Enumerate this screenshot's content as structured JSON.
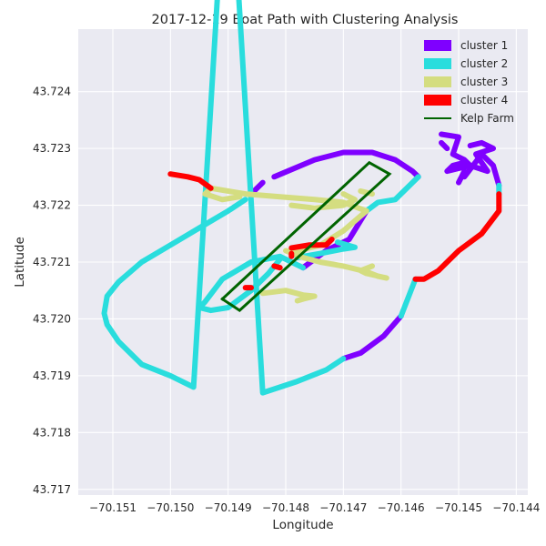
{
  "chart_data": {
    "type": "line",
    "title": "2017-12-19 Boat Path with Clustering Analysis",
    "xlabel": "Longitude",
    "ylabel": "Latitude",
    "xlim": [
      -70.1516,
      -70.1438
    ],
    "ylim": [
      43.7169,
      43.7251
    ],
    "xticks": [
      -70.151,
      -70.15,
      -70.149,
      -70.148,
      -70.147,
      -70.146,
      -70.145,
      -70.144
    ],
    "xtick_labels": [
      "−70.151",
      "−70.150",
      "−70.149",
      "−70.148",
      "−70.147",
      "−70.146",
      "−70.145",
      "−70.144"
    ],
    "yticks": [
      43.717,
      43.718,
      43.719,
      43.72,
      43.721,
      43.722,
      43.723,
      43.724
    ],
    "ytick_labels": [
      "43.717",
      "43.718",
      "43.719",
      "43.720",
      "43.721",
      "43.722",
      "43.723",
      "43.724"
    ],
    "grid": true,
    "legend_position": "top-right",
    "background_color": "#EAEAF2",
    "series": [
      {
        "name": "cluster 1",
        "color": "#7F00FF",
        "segments": [
          [
            [
              -70.1486,
              43.7222
            ],
            [
              -70.1484,
              43.7224
            ]
          ],
          [
            [
              -70.1482,
              43.7225
            ],
            [
              -70.1475,
              43.7228
            ],
            [
              -70.147,
              43.72293
            ],
            [
              -70.1465,
              43.72293
            ],
            [
              -70.1461,
              43.7228
            ],
            [
              -70.1458,
              43.7226
            ],
            [
              -70.1457,
              43.7225
            ]
          ],
          [
            [
              -70.1466,
              43.7219
            ],
            [
              -70.1469,
              43.7214
            ],
            [
              -70.1473,
              43.7212
            ],
            [
              -70.1477,
              43.7209
            ]
          ],
          [
            [
              -70.146,
              43.72005
            ],
            [
              -70.1463,
              43.7197
            ],
            [
              -70.1467,
              43.7194
            ],
            [
              -70.147,
              43.7193
            ]
          ],
          [
            [
              -70.1453,
              43.72325
            ],
            [
              -70.145,
              43.7232
            ],
            [
              -70.1451,
              43.7229
            ],
            [
              -70.1449,
              43.7228
            ],
            [
              -70.1448,
              43.7227
            ],
            [
              -70.1452,
              43.7226
            ],
            [
              -70.1451,
              43.7227
            ],
            [
              -70.1449,
              43.72275
            ],
            [
              -70.1448,
              43.7227
            ],
            [
              -70.1445,
              43.7226
            ],
            [
              -70.1447,
              43.7229
            ],
            [
              -70.1444,
              43.723
            ],
            [
              -70.1446,
              43.7231
            ],
            [
              -70.1448,
              43.72305
            ]
          ],
          [
            [
              -70.1452,
              43.723
            ],
            [
              -70.1453,
              43.7231
            ]
          ],
          [
            [
              -70.1449,
              43.7226
            ],
            [
              -70.145,
              43.7224
            ]
          ],
          [
            [
              -70.1449,
              43.7225
            ],
            [
              -70.1446,
              43.7229
            ],
            [
              -70.1444,
              43.7227
            ],
            [
              -70.1443,
              43.72235
            ]
          ]
        ]
      },
      {
        "name": "cluster 2",
        "color": "#29DDDD",
        "segments": [
          [
            [
              -70.1487,
              43.7221
            ],
            [
              -70.149,
              43.7219
            ],
            [
              -70.1495,
              43.7216
            ],
            [
              -70.15,
              43.7213
            ],
            [
              -70.1505,
              43.721
            ],
            [
              -70.1509,
              43.72065
            ],
            [
              -70.1511,
              43.7204
            ],
            [
              -70.15115,
              43.7201
            ],
            [
              -70.1511,
              43.7199
            ],
            [
              -70.1509,
              43.7196
            ],
            [
              -70.1505,
              43.7192
            ],
            [
              -70.15,
              43.719
            ],
            [
              -70.1496,
              43.7188
            ],
            [
              -70.149,
              43.72875
            ],
            [
              -70.1484,
              43.7187
            ],
            [
              -70.1478,
              43.7189
            ],
            [
              -70.1473,
              43.7191
            ],
            [
              -70.147,
              43.7193
            ]
          ],
          [
            [
              -70.1457,
              43.7225
            ],
            [
              -70.1458,
              43.7224
            ],
            [
              -70.1461,
              43.7221
            ],
            [
              -70.1464,
              43.72205
            ],
            [
              -70.1466,
              43.7219
            ]
          ],
          [
            [
              -70.1477,
              43.7209
            ],
            [
              -70.1481,
              43.7211
            ],
            [
              -70.1486,
              43.721
            ],
            [
              -70.1491,
              43.7207
            ],
            [
              -70.1494,
              43.7203
            ],
            [
              -70.1495,
              43.7202
            ],
            [
              -70.1493,
              43.72015
            ],
            [
              -70.149,
              43.7202
            ],
            [
              -70.1486,
              43.7205
            ],
            [
              -70.1483,
              43.7208
            ],
            [
              -70.1481,
              43.72105
            ]
          ],
          [
            [
              -70.1478,
              43.72108
            ],
            [
              -70.1474,
              43.72115
            ],
            [
              -70.147,
              43.72123
            ],
            [
              -70.1468,
              43.72126
            ],
            [
              -70.1471,
              43.72135
            ]
          ],
          [
            [
              -70.1443,
              43.72235
            ],
            [
              -70.1443,
              43.7222
            ]
          ],
          [
            [
              -70.14575,
              43.7207
            ],
            [
              -70.146,
              43.72005
            ]
          ]
        ]
      },
      {
        "name": "cluster 3",
        "color": "#D4DD80",
        "segments": [
          [
            [
              -70.1488,
              43.72215
            ],
            [
              -70.1491,
              43.7221
            ],
            [
              -70.1494,
              43.7222
            ],
            [
              -70.1493,
              43.7223
            ],
            [
              -70.1487,
              43.7222
            ],
            [
              -70.1481,
              43.72215
            ],
            [
              -70.1475,
              43.7221
            ],
            [
              -70.147,
              43.72205
            ],
            [
              -70.1466,
              43.7219
            ]
          ],
          [
            [
              -70.1466,
              43.7219
            ],
            [
              -70.147,
              43.72155
            ],
            [
              -70.1474,
              43.7213
            ],
            [
              -70.1479,
              43.72117
            ],
            [
              -70.148,
              43.7212
            ],
            [
              -70.1477,
              43.72108
            ],
            [
              -70.1474,
              43.721
            ],
            [
              -70.147,
              43.72093
            ],
            [
              -70.1466,
              43.72083
            ],
            [
              -70.1464,
              43.72075
            ],
            [
              -70.14625,
              43.72072
            ],
            [
              -70.1466,
              43.7208
            ],
            [
              -70.1467,
              43.72085
            ],
            [
              -70.1465,
              43.72093
            ]
          ],
          [
            [
              -70.1484,
              43.72045
            ],
            [
              -70.148,
              43.7205
            ],
            [
              -70.1477,
              43.72042
            ],
            [
              -70.1475,
              43.7204
            ],
            [
              -70.1477,
              43.72035
            ],
            [
              -70.1478,
              43.72032
            ]
          ],
          [
            [
              -70.1479,
              43.722
            ],
            [
              -70.1475,
              43.72195
            ],
            [
              -70.147,
              43.722
            ],
            [
              -70.1468,
              43.7221
            ],
            [
              -70.147,
              43.7222
            ]
          ],
          [
            [
              -70.1465,
              43.7222
            ],
            [
              -70.1467,
              43.72225
            ]
          ]
        ]
      },
      {
        "name": "cluster 4",
        "color": "#FF0000",
        "segments": [
          [
            [
              -70.15,
              43.72255
            ],
            [
              -70.1497,
              43.7225
            ],
            [
              -70.1495,
              43.72245
            ],
            [
              -70.1493,
              43.7223
            ]
          ],
          [
            [
              -70.1443,
              43.7222
            ],
            [
              -70.1443,
              43.7219
            ],
            [
              -70.1446,
              43.7215
            ],
            [
              -70.145,
              43.7212
            ],
            [
              -70.14535,
              43.72085
            ],
            [
              -70.1456,
              43.7207
            ],
            [
              -70.14575,
              43.7207
            ]
          ],
          [
            [
              -70.1479,
              43.72125
            ],
            [
              -70.1476,
              43.7213
            ],
            [
              -70.1473,
              43.7213
            ],
            [
              -70.1472,
              43.7214
            ]
          ],
          [
            [
              -70.1481,
              43.7209
            ],
            [
              -70.1482,
              43.72093
            ]
          ],
          [
            [
              -70.1479,
              43.7211
            ],
            [
              -70.1479,
              43.72115
            ]
          ],
          [
            [
              -70.1486,
              43.72055
            ],
            [
              -70.1487,
              43.72055
            ]
          ]
        ]
      },
      {
        "name": "Kelp Farm",
        "color": "#006400",
        "segments": [
          [
            [
              -70.1491,
              43.72035
            ],
            [
              -70.14655,
              43.72275
            ],
            [
              -70.1462,
              43.72255
            ],
            [
              -70.1488,
              43.72015
            ],
            [
              -70.1491,
              43.72035
            ]
          ]
        ]
      }
    ]
  }
}
